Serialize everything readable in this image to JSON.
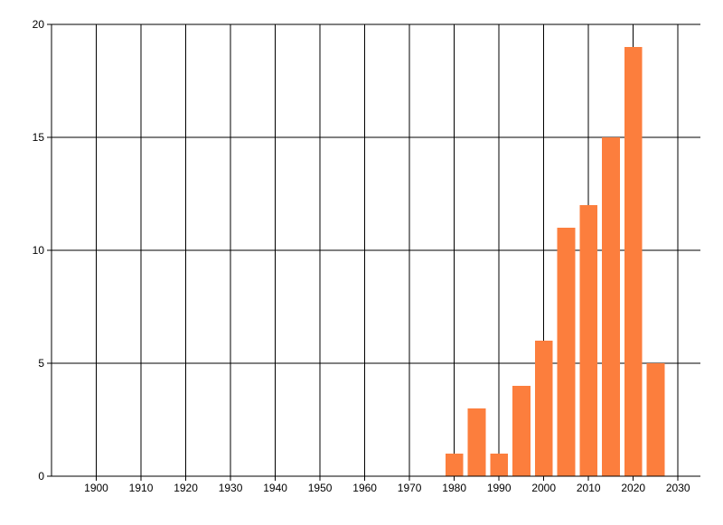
{
  "chart_data": {
    "type": "bar",
    "title": "",
    "xlabel": "",
    "ylabel": "",
    "categories": [
      1980,
      1985,
      1990,
      1995,
      2000,
      2005,
      2010,
      2015,
      2020,
      2025
    ],
    "values": [
      1,
      3,
      1,
      4,
      6,
      11,
      12,
      15,
      19,
      5
    ],
    "bar_width_years": 4,
    "xlim": [
      1890,
      2035
    ],
    "ylim": [
      0,
      20
    ],
    "x_ticks": [
      1900,
      1910,
      1920,
      1930,
      1940,
      1950,
      1960,
      1970,
      1980,
      1990,
      2000,
      2010,
      2020,
      2030
    ],
    "y_ticks": [
      0,
      5,
      10,
      15,
      20
    ],
    "grid": true,
    "legend": false,
    "colors": {
      "bar": "#FC7E3D",
      "grid": "#000000",
      "axis": "#000000",
      "text": "#000000",
      "background": "#FFFFFF"
    }
  }
}
